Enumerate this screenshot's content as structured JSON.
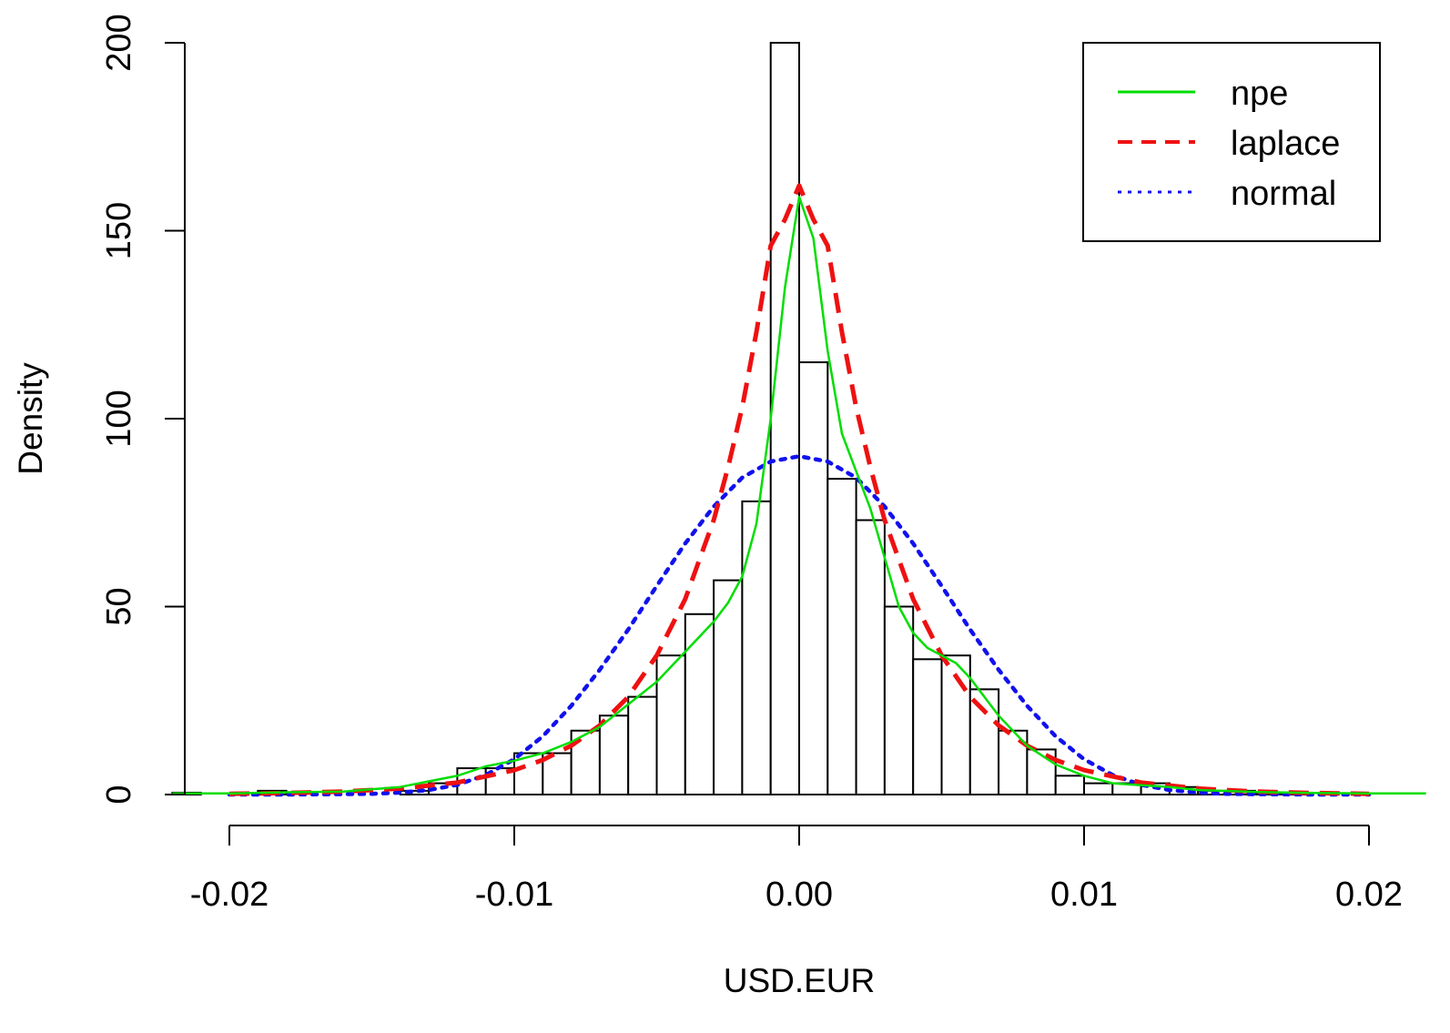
{
  "chart_data": {
    "type": "histogram",
    "xlabel": "USD.EUR",
    "ylabel": "Density",
    "xlim": [
      -0.0215,
      0.0215
    ],
    "ylim": [
      0,
      200
    ],
    "x_ticks": [
      -0.02,
      -0.01,
      0.0,
      0.01,
      0.02
    ],
    "x_tick_labels": [
      "-0.02",
      "-0.01",
      "0.00",
      "0.01",
      "0.02"
    ],
    "y_ticks": [
      0,
      50,
      100,
      150,
      200
    ],
    "y_tick_labels": [
      "0",
      "50",
      "100",
      "150",
      "200"
    ],
    "bin_width": 0.001,
    "bins": [
      {
        "x0": -0.022,
        "density": 0.5
      },
      {
        "x0": -0.019,
        "density": 1
      },
      {
        "x0": -0.014,
        "density": 1
      },
      {
        "x0": -0.013,
        "density": 3
      },
      {
        "x0": -0.012,
        "density": 7
      },
      {
        "x0": -0.011,
        "density": 7
      },
      {
        "x0": -0.01,
        "density": 11
      },
      {
        "x0": -0.009,
        "density": 11
      },
      {
        "x0": -0.008,
        "density": 17
      },
      {
        "x0": -0.007,
        "density": 21
      },
      {
        "x0": -0.006,
        "density": 26
      },
      {
        "x0": -0.005,
        "density": 37
      },
      {
        "x0": -0.004,
        "density": 48
      },
      {
        "x0": -0.003,
        "density": 57
      },
      {
        "x0": -0.002,
        "density": 78
      },
      {
        "x0": -0.001,
        "density": 200
      },
      {
        "x0": 0.0,
        "density": 115
      },
      {
        "x0": 0.001,
        "density": 84
      },
      {
        "x0": 0.002,
        "density": 73
      },
      {
        "x0": 0.003,
        "density": 50
      },
      {
        "x0": 0.004,
        "density": 36
      },
      {
        "x0": 0.005,
        "density": 37
      },
      {
        "x0": 0.006,
        "density": 28
      },
      {
        "x0": 0.007,
        "density": 17
      },
      {
        "x0": 0.008,
        "density": 12
      },
      {
        "x0": 0.009,
        "density": 5
      },
      {
        "x0": 0.01,
        "density": 3
      },
      {
        "x0": 0.011,
        "density": 3
      },
      {
        "x0": 0.012,
        "density": 3
      },
      {
        "x0": 0.013,
        "density": 2
      },
      {
        "x0": 0.014,
        "density": 1
      },
      {
        "x0": 0.015,
        "density": 1
      },
      {
        "x0": 0.016,
        "density": 0.5
      },
      {
        "x0": 0.017,
        "density": 0.5
      }
    ],
    "series": [
      {
        "name": "npe",
        "color": "#00dd00",
        "style": "solid",
        "x": [
          -0.022,
          -0.02,
          -0.018,
          -0.016,
          -0.014,
          -0.013,
          -0.012,
          -0.011,
          -0.01,
          -0.009,
          -0.008,
          -0.007,
          -0.006,
          -0.005,
          -0.004,
          -0.003,
          -0.0025,
          -0.002,
          -0.0015,
          -0.001,
          -0.0005,
          0.0,
          0.0005,
          0.001,
          0.0015,
          0.002,
          0.0025,
          0.003,
          0.0035,
          0.004,
          0.0045,
          0.005,
          0.0055,
          0.006,
          0.007,
          0.008,
          0.009,
          0.01,
          0.011,
          0.012,
          0.013,
          0.014,
          0.016,
          0.018,
          0.02,
          0.022
        ],
        "y": [
          0.3,
          0.3,
          0.6,
          0.8,
          2,
          3.5,
          5,
          7.5,
          9,
          11,
          14,
          18,
          24,
          30,
          38,
          46,
          51,
          58,
          72,
          100,
          135,
          159,
          148,
          118,
          96,
          86,
          76,
          63,
          50,
          43,
          39,
          37,
          35,
          31,
          21,
          13,
          8,
          5,
          3,
          2.5,
          2,
          1.2,
          0.7,
          0.4,
          0.3,
          0.3
        ]
      },
      {
        "name": "laplace",
        "color": "#ee1111",
        "style": "dashed",
        "x": [
          -0.02,
          -0.018,
          -0.016,
          -0.014,
          -0.012,
          -0.01,
          -0.009,
          -0.008,
          -0.007,
          -0.006,
          -0.005,
          -0.004,
          -0.003,
          -0.0025,
          -0.002,
          -0.0015,
          -0.001,
          -0.0005,
          0.0,
          0.0005,
          0.001,
          0.0015,
          0.002,
          0.0025,
          0.003,
          0.004,
          0.005,
          0.006,
          0.007,
          0.008,
          0.009,
          0.01,
          0.012,
          0.014,
          0.016,
          0.018,
          0.02
        ],
        "y": [
          0.2,
          0.4,
          0.8,
          1.6,
          3.2,
          6.5,
          9.2,
          13,
          18.4,
          26,
          37,
          52,
          73,
          87,
          103,
          123,
          146,
          153,
          162,
          153,
          146,
          123,
          103,
          87,
          73,
          52,
          37,
          26,
          18.4,
          13,
          9.2,
          6.5,
          3.2,
          1.6,
          0.8,
          0.4,
          0.2
        ]
      },
      {
        "name": "normal",
        "color": "#1111ee",
        "style": "dotted",
        "x": [
          -0.02,
          -0.018,
          -0.016,
          -0.015,
          -0.014,
          -0.013,
          -0.012,
          -0.011,
          -0.01,
          -0.009,
          -0.008,
          -0.007,
          -0.006,
          -0.005,
          -0.004,
          -0.003,
          -0.002,
          -0.001,
          0.0,
          0.001,
          0.002,
          0.003,
          0.004,
          0.005,
          0.006,
          0.007,
          0.008,
          0.009,
          0.01,
          0.011,
          0.012,
          0.013,
          0.014,
          0.015,
          0.016,
          0.018,
          0.02
        ],
        "y": [
          0,
          0,
          0.1,
          0.2,
          0.5,
          1.2,
          2.6,
          5.2,
          9.4,
          15.5,
          23.6,
          33.2,
          43.9,
          55.5,
          66.8,
          76.6,
          84.3,
          88.6,
          90,
          88.6,
          84.3,
          76.6,
          66.8,
          55.5,
          43.9,
          33.2,
          23.6,
          15.5,
          9.4,
          5.2,
          2.6,
          1.2,
          0.5,
          0.2,
          0.1,
          0,
          0
        ]
      }
    ],
    "legend": {
      "position": "top-right",
      "entries": [
        {
          "label": "npe",
          "color": "#00dd00",
          "style": "solid"
        },
        {
          "label": "laplace",
          "color": "#ee1111",
          "style": "dashed"
        },
        {
          "label": "normal",
          "color": "#1111ee",
          "style": "dotted"
        }
      ]
    },
    "grid": false
  }
}
